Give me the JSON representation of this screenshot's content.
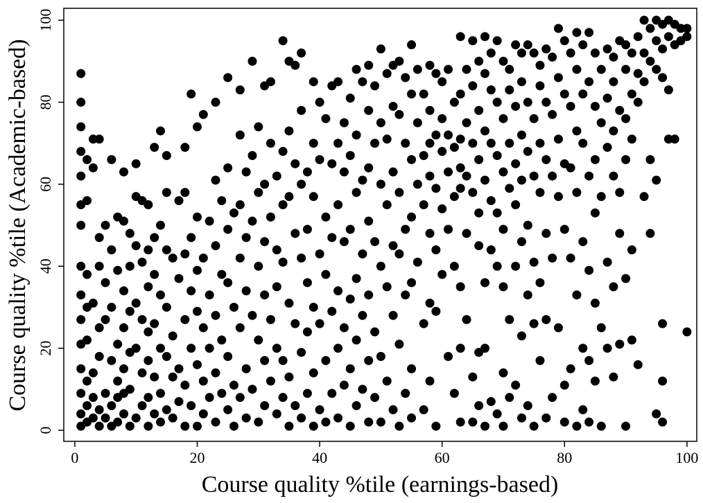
{
  "chart_data": {
    "type": "scatter",
    "x_label": "Course quality %tile (earnings-based)",
    "y_label": "Course quality %tile (Academic-based)",
    "color": "#000000",
    "xlim": [
      -1.8,
      101.6
    ],
    "ylim": [
      -2.7,
      102.9
    ],
    "xticks": [
      0,
      20,
      40,
      60,
      80,
      100
    ],
    "yticks": [
      0,
      20,
      40,
      60,
      80,
      100
    ],
    "x": [
      1,
      1,
      1,
      1,
      1,
      1,
      1,
      1,
      1,
      1,
      1,
      1,
      1,
      1,
      1,
      2,
      2,
      2,
      2,
      2,
      2,
      2,
      2,
      3,
      3,
      3,
      3,
      3,
      3,
      4,
      4,
      4,
      4,
      4,
      4,
      4,
      5,
      5,
      5,
      5,
      5,
      6,
      6,
      6,
      6,
      6,
      6,
      7,
      7,
      7,
      7,
      7,
      7,
      8,
      8,
      8,
      8,
      8,
      8,
      8,
      9,
      9,
      9,
      9,
      9,
      9,
      10,
      10,
      10,
      10,
      10,
      10,
      11,
      11,
      11,
      11,
      11,
      12,
      12,
      12,
      12,
      12,
      12,
      12,
      13,
      13,
      13,
      13,
      13,
      13,
      14,
      14,
      14,
      14,
      14,
      14,
      15,
      15,
      15,
      15,
      15,
      15,
      16,
      16,
      16,
      16,
      17,
      17,
      17,
      17,
      18,
      18,
      18,
      18,
      18,
      18,
      19,
      19,
      19,
      19,
      19,
      20,
      20,
      20,
      20,
      20,
      20,
      21,
      21,
      21,
      21,
      21,
      22,
      22,
      22,
      22,
      23,
      23,
      23,
      23,
      23,
      23,
      24,
      24,
      24,
      24,
      25,
      25,
      25,
      25,
      25,
      25,
      26,
      26,
      26,
      26,
      27,
      27,
      27,
      27,
      27,
      27,
      28,
      28,
      28,
      28,
      28,
      29,
      29,
      29,
      29,
      29,
      30,
      30,
      30,
      30,
      30,
      31,
      31,
      31,
      31,
      31,
      31,
      32,
      32,
      32,
      32,
      32,
      33,
      33,
      33,
      33,
      33,
      34,
      34,
      34,
      34,
      34,
      34,
      35,
      35,
      35,
      35,
      35,
      35,
      36,
      36,
      36,
      36,
      36,
      37,
      37,
      37,
      37,
      37,
      37,
      38,
      38,
      38,
      38,
      38,
      39,
      39,
      39,
      39,
      39,
      39,
      40,
      40,
      40,
      40,
      40,
      41,
      41,
      41,
      41,
      41,
      42,
      42,
      42,
      42,
      42,
      43,
      43,
      43,
      43,
      43,
      43,
      44,
      44,
      44,
      44,
      44,
      45,
      45,
      45,
      45,
      45,
      45,
      46,
      46,
      46,
      46,
      46,
      46,
      47,
      47,
      47,
      47,
      47,
      48,
      48,
      48,
      48,
      48,
      48,
      48,
      49,
      49,
      49,
      49,
      49,
      50,
      50,
      50,
      50,
      50,
      50,
      51,
      51,
      51,
      51,
      51,
      52,
      52,
      52,
      52,
      52,
      52,
      53,
      53,
      53,
      53,
      53,
      53,
      54,
      54,
      54,
      54,
      54,
      55,
      55,
      55,
      55,
      55,
      55,
      55,
      56,
      56,
      56,
      56,
      57,
      57,
      57,
      57,
      57,
      58,
      58,
      58,
      58,
      58,
      58,
      58,
      59,
      59,
      59,
      59,
      59,
      59,
      60,
      60,
      60,
      60,
      60,
      61,
      61,
      61,
      61,
      61,
      62,
      62,
      62,
      62,
      62,
      63,
      63,
      63,
      63,
      63,
      63,
      63,
      63,
      64,
      64,
      64,
      64,
      64,
      65,
      65,
      65,
      65,
      65,
      65,
      66,
      66,
      66,
      66,
      66,
      66,
      66,
      67,
      67,
      67,
      67,
      67,
      67,
      67,
      68,
      68,
      68,
      68,
      68,
      68,
      69,
      69,
      69,
      69,
      69,
      69,
      70,
      70,
      70,
      70,
      70,
      70,
      70,
      71,
      71,
      71,
      71,
      71,
      71,
      72,
      72,
      72,
      72,
      72,
      72,
      73,
      73,
      73,
      73,
      73,
      73,
      73,
      74,
      74,
      74,
      74,
      74,
      74,
      75,
      75,
      75,
      75,
      75,
      75,
      76,
      76,
      76,
      76,
      76,
      76,
      77,
      77,
      77,
      77,
      77,
      77,
      78,
      78,
      78,
      78,
      78,
      79,
      79,
      79,
      79,
      79,
      80,
      80,
      80,
      80,
      80,
      80,
      81,
      81,
      81,
      81,
      81,
      82,
      82,
      82,
      82,
      82,
      82,
      83,
      83,
      83,
      83,
      83,
      83,
      84,
      84,
      84,
      84,
      84,
      84,
      85,
      85,
      85,
      85,
      85,
      85,
      86,
      86,
      86,
      86,
      86,
      87,
      87,
      87,
      87,
      87,
      88,
      88,
      88,
      88,
      88,
      88,
      89,
      89,
      89,
      89,
      89,
      90,
      90,
      90,
      90,
      90,
      90,
      91,
      91,
      91,
      91,
      91,
      92,
      92,
      92,
      92,
      93,
      93,
      93,
      93,
      94,
      94,
      94,
      94,
      95,
      95,
      95,
      95,
      95,
      96,
      96,
      96,
      96,
      96,
      96,
      97,
      97,
      97,
      97,
      98,
      98,
      98,
      99,
      99,
      100,
      100,
      100
    ],
    "values": [
      87,
      80,
      74,
      68,
      62,
      55,
      50,
      40,
      33,
      27,
      21,
      15,
      9,
      4,
      1,
      66,
      56,
      38,
      30,
      22,
      12,
      6,
      2,
      71,
      64,
      31,
      14,
      8,
      3,
      71,
      47,
      40,
      25,
      18,
      5,
      1,
      50,
      36,
      27,
      9,
      3,
      66,
      44,
      30,
      17,
      6,
      1,
      52,
      39,
      21,
      12,
      8,
      2,
      63,
      51,
      34,
      25,
      15,
      9,
      4,
      48,
      40,
      29,
      19,
      10,
      1,
      65,
      57,
      45,
      31,
      20,
      3,
      56,
      41,
      27,
      14,
      6,
      55,
      44,
      35,
      24,
      17,
      8,
      1,
      69,
      47,
      38,
      26,
      13,
      4,
      73,
      50,
      33,
      20,
      9,
      2,
      67,
      58,
      44,
      30,
      18,
      5,
      42,
      23,
      13,
      3,
      56,
      37,
      15,
      7,
      69,
      58,
      43,
      27,
      11,
      1,
      82,
      47,
      34,
      20,
      6,
      74,
      52,
      39,
      29,
      16,
      1,
      77,
      42,
      25,
      12,
      4,
      51,
      33,
      20,
      8,
      80,
      61,
      45,
      28,
      14,
      2,
      56,
      38,
      22,
      9,
      86,
      64,
      49,
      36,
      18,
      5,
      53,
      30,
      11,
      1,
      83,
      72,
      55,
      42,
      25,
      8,
      63,
      47,
      34,
      15,
      3,
      90,
      67,
      51,
      28,
      10,
      74,
      58,
      40,
      22,
      2,
      84,
      60,
      46,
      33,
      17,
      6,
      85,
      70,
      52,
      27,
      12,
      62,
      44,
      35,
      20,
      4,
      95,
      68,
      55,
      41,
      17,
      8,
      90,
      73,
      57,
      31,
      13,
      1,
      89,
      65,
      48,
      26,
      6,
      92,
      78,
      60,
      42,
      19,
      3,
      63,
      49,
      36,
      24,
      9,
      85,
      70,
      57,
      30,
      14,
      1,
      80,
      66,
      43,
      26,
      5,
      76,
      52,
      38,
      17,
      2,
      84,
      65,
      47,
      29,
      9,
      85,
      70,
      55,
      34,
      20,
      3,
      75,
      63,
      46,
      25,
      11,
      81,
      67,
      49,
      32,
      15,
      1,
      88,
      72,
      58,
      37,
      22,
      6,
      85,
      61,
      43,
      28,
      10,
      89,
      78,
      64,
      51,
      33,
      17,
      2,
      84,
      70,
      46,
      24,
      8,
      93,
      75,
      60,
      40,
      18,
      2,
      87,
      71,
      55,
      35,
      12,
      89,
      79,
      63,
      45,
      28,
      5,
      90,
      77,
      58,
      43,
      21,
      1,
      86,
      70,
      49,
      33,
      9,
      94,
      82,
      66,
      52,
      36,
      15,
      3,
      88,
      75,
      60,
      41,
      82,
      67,
      55,
      26,
      5,
      89,
      78,
      70,
      62,
      48,
      31,
      12,
      87,
      72,
      59,
      44,
      29,
      1,
      85,
      76,
      68,
      54,
      38,
      88,
      72,
      63,
      49,
      18,
      80,
      69,
      57,
      40,
      9,
      96,
      82,
      71,
      64,
      59,
      35,
      20,
      2,
      88,
      75,
      62,
      48,
      27,
      95,
      84,
      70,
      58,
      13,
      2,
      90,
      78,
      66,
      53,
      45,
      19,
      6,
      96,
      87,
      73,
      61,
      36,
      20,
      1,
      92,
      83,
      70,
      56,
      44,
      7,
      95,
      80,
      67,
      53,
      40,
      4,
      90,
      76,
      63,
      49,
      35,
      14,
      1,
      88,
      83,
      70,
      59,
      27,
      8,
      94,
      79,
      65,
      55,
      40,
      11,
      92,
      85,
      72,
      61,
      46,
      23,
      3,
      94,
      80,
      68,
      50,
      33,
      6,
      92,
      76,
      62,
      41,
      26,
      1,
      89,
      84,
      70,
      58,
      36,
      17,
      93,
      80,
      66,
      48,
      27,
      3,
      91,
      77,
      62,
      42,
      8,
      98,
      86,
      71,
      57,
      25,
      95,
      82,
      65,
      49,
      11,
      2,
      92,
      79,
      64,
      42,
      15,
      97,
      88,
      73,
      58,
      33,
      1,
      94,
      82,
      70,
      46,
      20,
      5,
      97,
      85,
      62,
      39,
      17,
      2,
      92,
      79,
      66,
      53,
      31,
      12,
      88,
      75,
      57,
      25,
      1,
      93,
      81,
      69,
      41,
      20,
      91,
      85,
      73,
      62,
      35,
      13,
      95,
      78,
      58,
      48,
      21,
      94,
      88,
      76,
      66,
      37,
      1,
      92,
      82,
      71,
      44,
      22,
      96,
      87,
      80,
      16,
      100,
      92,
      85,
      57,
      98,
      90,
      66,
      48,
      100,
      95,
      88,
      61,
      4,
      99,
      93,
      86,
      26,
      12,
      2,
      100,
      96,
      83,
      71,
      99,
      94,
      71,
      98,
      95,
      98,
      96,
      24
    ]
  }
}
